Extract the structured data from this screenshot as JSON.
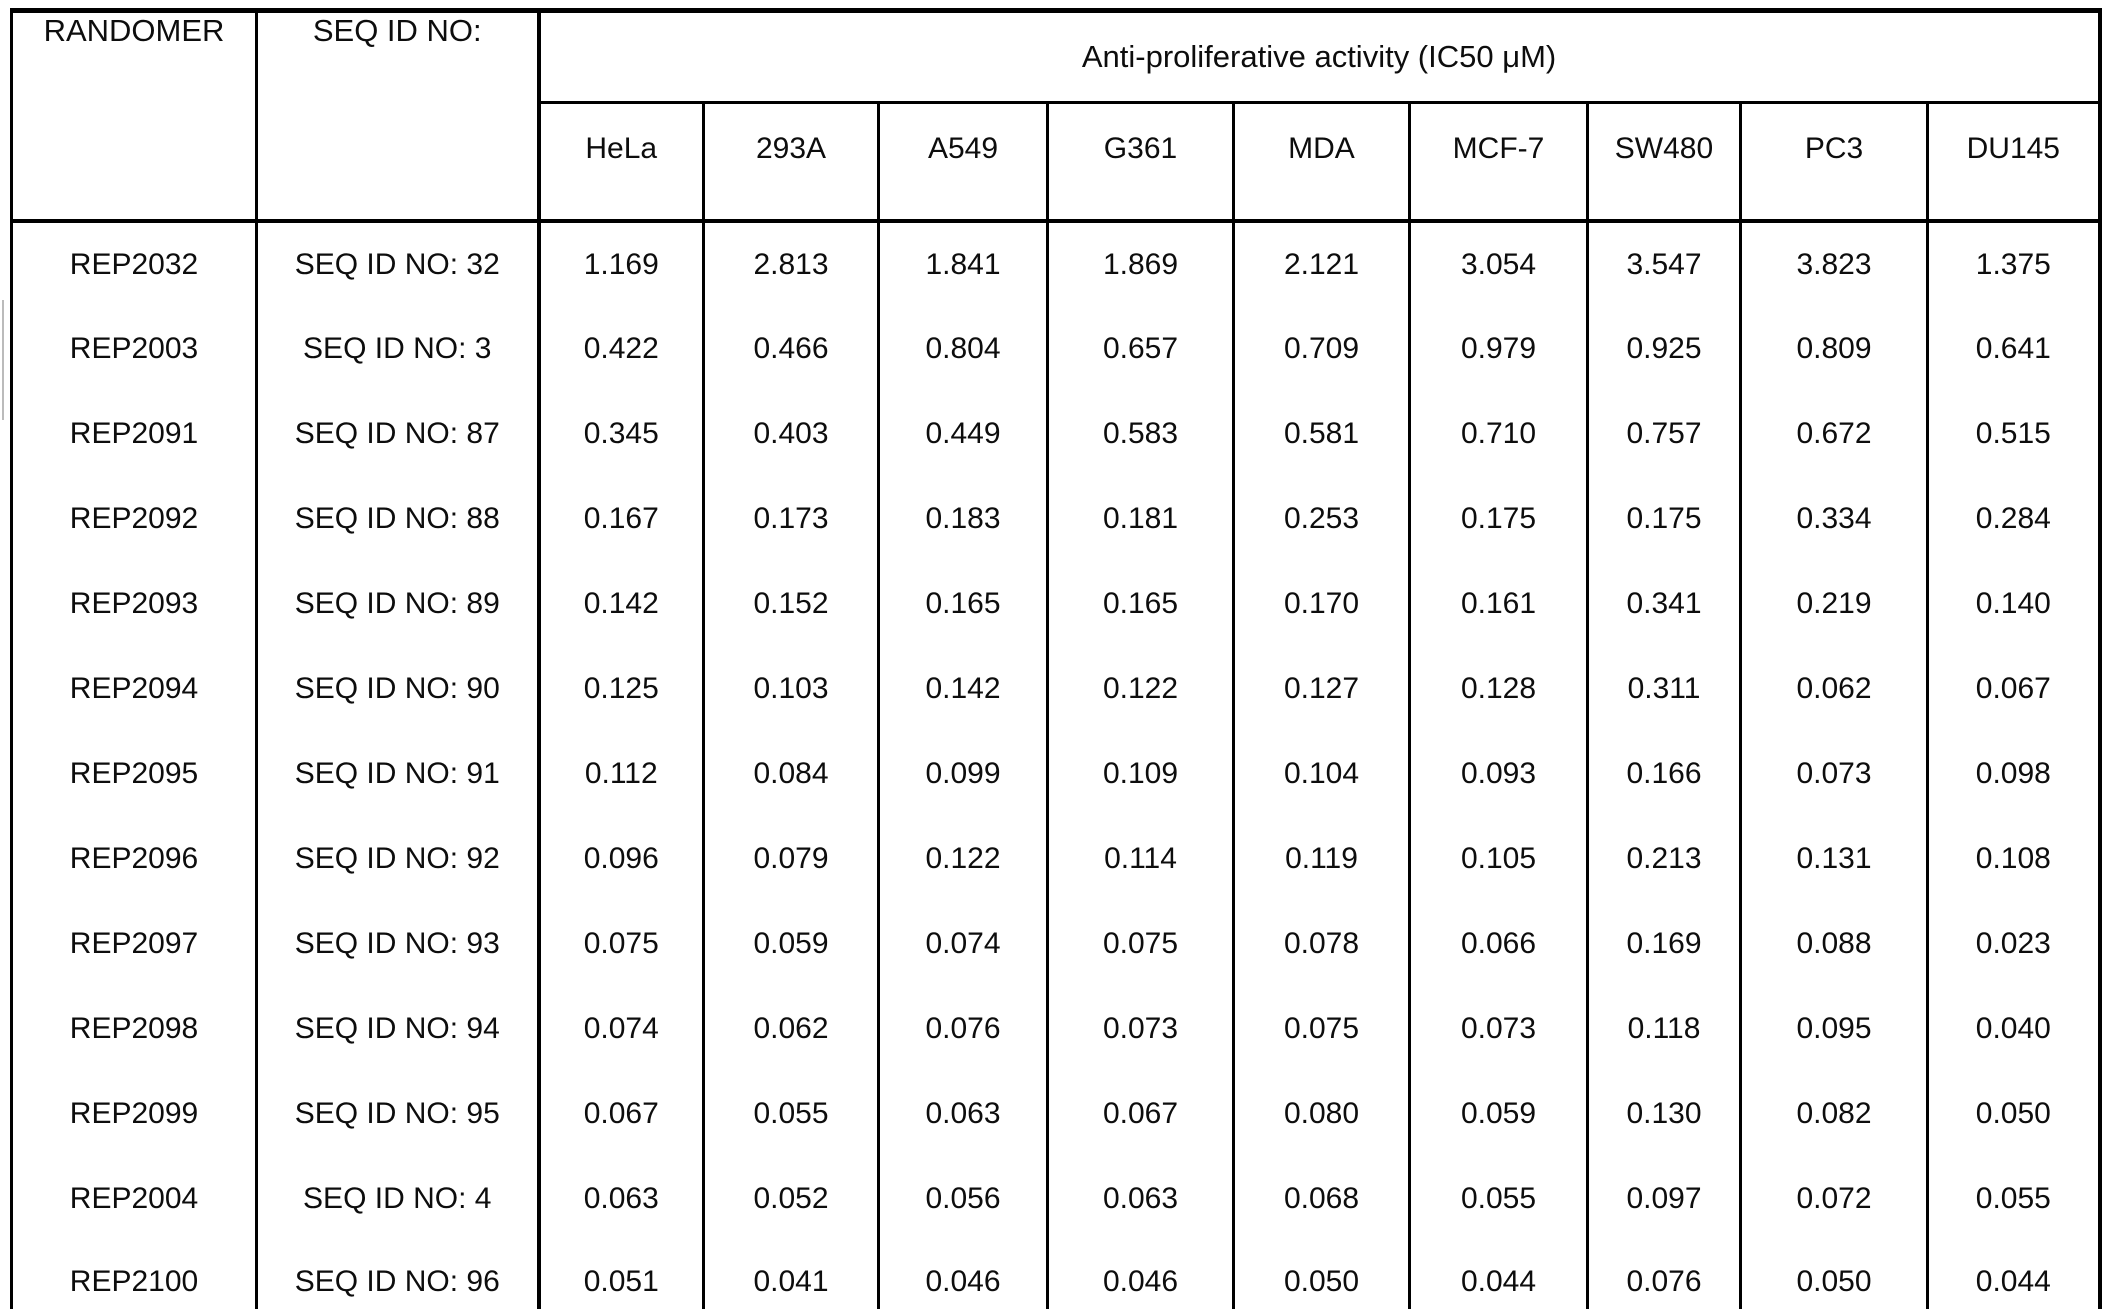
{
  "table": {
    "header": {
      "randomer": "RANDOMER",
      "seq_id": "SEQ ID NO:",
      "group_title": "Anti-proliferative activity (IC50 μM)"
    },
    "cell_lines": [
      "HeLa",
      "293A",
      "A549",
      "G361",
      "MDA",
      "MCF-7",
      "SW480",
      "PC3",
      "DU145"
    ],
    "rows": [
      {
        "randomer": "REP2032",
        "seq_id": "SEQ ID NO: 32",
        "values": [
          "1.169",
          "2.813",
          "1.841",
          "1.869",
          "2.121",
          "3.054",
          "3.547",
          "3.823",
          "1.375"
        ]
      },
      {
        "randomer": "REP2003",
        "seq_id": "SEQ ID NO: 3",
        "values": [
          "0.422",
          "0.466",
          "0.804",
          "0.657",
          "0.709",
          "0.979",
          "0.925",
          "0.809",
          "0.641"
        ]
      },
      {
        "randomer": "REP2091",
        "seq_id": "SEQ ID NO: 87",
        "values": [
          "0.345",
          "0.403",
          "0.449",
          "0.583",
          "0.581",
          "0.710",
          "0.757",
          "0.672",
          "0.515"
        ]
      },
      {
        "randomer": "REP2092",
        "seq_id": "SEQ ID NO: 88",
        "values": [
          "0.167",
          "0.173",
          "0.183",
          "0.181",
          "0.253",
          "0.175",
          "0.175",
          "0.334",
          "0.284"
        ]
      },
      {
        "randomer": "REP2093",
        "seq_id": "SEQ ID NO: 89",
        "values": [
          "0.142",
          "0.152",
          "0.165",
          "0.165",
          "0.170",
          "0.161",
          "0.341",
          "0.219",
          "0.140"
        ]
      },
      {
        "randomer": "REP2094",
        "seq_id": "SEQ ID NO: 90",
        "values": [
          "0.125",
          "0.103",
          "0.142",
          "0.122",
          "0.127",
          "0.128",
          "0.311",
          "0.062",
          "0.067"
        ]
      },
      {
        "randomer": "REP2095",
        "seq_id": "SEQ ID NO: 91",
        "values": [
          "0.112",
          "0.084",
          "0.099",
          "0.109",
          "0.104",
          "0.093",
          "0.166",
          "0.073",
          "0.098"
        ]
      },
      {
        "randomer": "REP2096",
        "seq_id": "SEQ ID NO: 92",
        "values": [
          "0.096",
          "0.079",
          "0.122",
          "0.114",
          "0.119",
          "0.105",
          "0.213",
          "0.131",
          "0.108"
        ]
      },
      {
        "randomer": "REP2097",
        "seq_id": "SEQ ID NO: 93",
        "values": [
          "0.075",
          "0.059",
          "0.074",
          "0.075",
          "0.078",
          "0.066",
          "0.169",
          "0.088",
          "0.023"
        ]
      },
      {
        "randomer": "REP2098",
        "seq_id": "SEQ ID NO: 94",
        "values": [
          "0.074",
          "0.062",
          "0.076",
          "0.073",
          "0.075",
          "0.073",
          "0.118",
          "0.095",
          "0.040"
        ]
      },
      {
        "randomer": "REP2099",
        "seq_id": "SEQ ID NO: 95",
        "values": [
          "0.067",
          "0.055",
          "0.063",
          "0.067",
          "0.080",
          "0.059",
          "0.130",
          "0.082",
          "0.050"
        ]
      },
      {
        "randomer": "REP2004",
        "seq_id": "SEQ ID NO: 4",
        "values": [
          "0.063",
          "0.052",
          "0.056",
          "0.063",
          "0.068",
          "0.055",
          "0.097",
          "0.072",
          "0.055"
        ]
      },
      {
        "randomer": "REP2100",
        "seq_id": "SEQ ID NO: 96",
        "values": [
          "0.051",
          "0.041",
          "0.046",
          "0.046",
          "0.050",
          "0.044",
          "0.076",
          "0.050",
          "0.044"
        ]
      }
    ]
  }
}
